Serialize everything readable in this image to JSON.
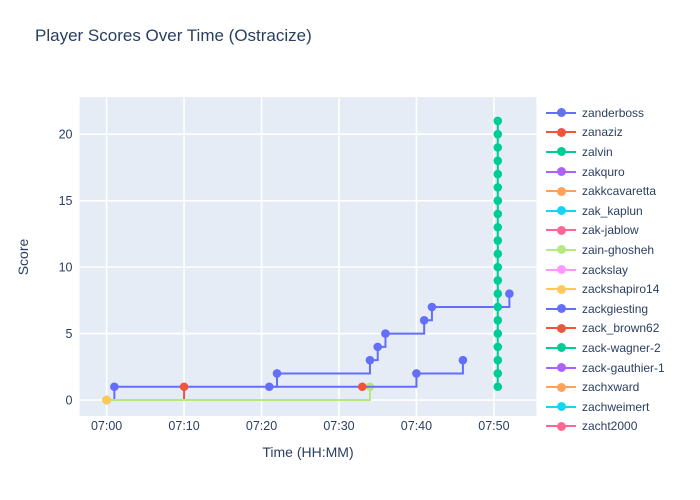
{
  "title": "Player Scores Over Time (Ostracize)",
  "colors": {
    "paper": "#ffffff",
    "plot_background": "#e5ecf6",
    "gridline": "#ffffff",
    "text": "#2a3f5f"
  },
  "chart_data": {
    "type": "line",
    "line_shape": "hv",
    "mode": "lines+markers",
    "title": "Player Scores Over Time (Ostracize)",
    "xlabel": "Time (HH:MM)",
    "ylabel": "Score",
    "x_ticks": [
      "07:00",
      "07:10",
      "07:20",
      "07:30",
      "07:40",
      "07:50"
    ],
    "y_ticks": [
      0,
      5,
      10,
      15,
      20
    ],
    "x_range": [
      "06:56:30",
      "07:55:30"
    ],
    "y_range": [
      -1.2,
      22.8
    ],
    "grid": true,
    "legend_position": "right",
    "series": [
      {
        "name": "zanderboss",
        "color": "#636efa",
        "points": [
          [
            "07:00",
            0
          ],
          [
            "07:01",
            1
          ],
          [
            "07:22",
            2
          ],
          [
            "07:34",
            3
          ],
          [
            "07:35",
            4
          ],
          [
            "07:36",
            5
          ],
          [
            "07:41",
            6
          ],
          [
            "07:42",
            7
          ],
          [
            "07:52",
            8
          ]
        ]
      },
      {
        "name": "zanaziz",
        "color": "#ef553b",
        "points": [
          [
            "07:00",
            0
          ],
          [
            "07:10",
            1
          ]
        ]
      },
      {
        "name": "zalvin",
        "color": "#00cc96",
        "points": [
          [
            "07:50:30",
            1
          ],
          [
            "07:50:30",
            2
          ],
          [
            "07:50:30",
            3
          ],
          [
            "07:50:30",
            4
          ],
          [
            "07:50:30",
            5
          ],
          [
            "07:50:30",
            6
          ],
          [
            "07:50:30",
            7
          ],
          [
            "07:50:30",
            8
          ],
          [
            "07:50:30",
            9
          ],
          [
            "07:50:30",
            10
          ],
          [
            "07:50:30",
            11
          ],
          [
            "07:50:30",
            12
          ],
          [
            "07:50:30",
            13
          ],
          [
            "07:50:30",
            14
          ],
          [
            "07:50:30",
            15
          ],
          [
            "07:50:30",
            16
          ],
          [
            "07:50:30",
            17
          ],
          [
            "07:50:30",
            18
          ],
          [
            "07:50:30",
            19
          ],
          [
            "07:50:30",
            20
          ],
          [
            "07:50:30",
            21
          ]
        ]
      },
      {
        "name": "zakquro",
        "color": "#ab63fa",
        "points": []
      },
      {
        "name": "zakkcavaretta",
        "color": "#ffa15a",
        "points": []
      },
      {
        "name": "zak_kaplun",
        "color": "#19d3f3",
        "points": []
      },
      {
        "name": "zak-jablow",
        "color": "#ff6692",
        "points": []
      },
      {
        "name": "zain-ghosheh",
        "color": "#b6e880",
        "points": [
          [
            "07:00",
            0
          ],
          [
            "07:34",
            1
          ]
        ]
      },
      {
        "name": "zackslay",
        "color": "#ff97ff",
        "points": []
      },
      {
        "name": "zackshapiro14",
        "color": "#fecb52",
        "points": [
          [
            "07:00",
            0
          ]
        ]
      },
      {
        "name": "zackgiesting",
        "color": "#636efa",
        "points": [
          [
            "07:21",
            1
          ],
          [
            "07:40",
            2
          ],
          [
            "07:46",
            3
          ]
        ]
      },
      {
        "name": "zack_brown62",
        "color": "#ef553b",
        "points": [
          [
            "07:33",
            1
          ]
        ]
      },
      {
        "name": "zack-wagner-2",
        "color": "#00cc96",
        "points": []
      },
      {
        "name": "zack-gauthier-1",
        "color": "#ab63fa",
        "points": []
      },
      {
        "name": "zachxward",
        "color": "#ffa15a",
        "points": []
      },
      {
        "name": "zachweimert",
        "color": "#19d3f3",
        "points": []
      },
      {
        "name": "zacht2000",
        "color": "#ff6692",
        "points": []
      }
    ]
  }
}
